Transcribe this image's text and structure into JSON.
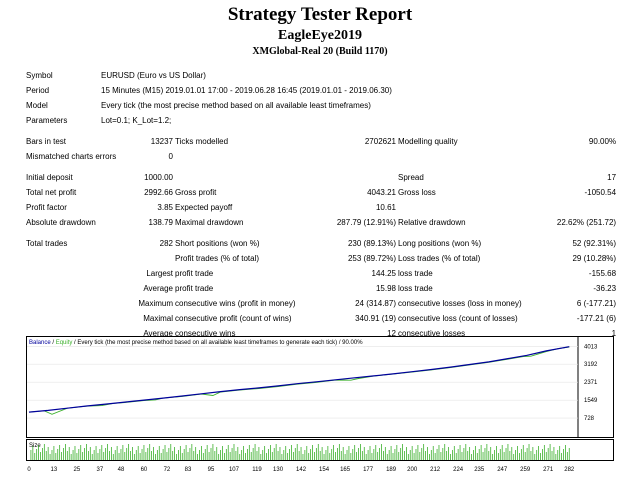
{
  "report": {
    "title": "Strategy Tester Report",
    "expert": "EagleEye2019",
    "server": "XMGlobal-Real 20 (Build 1170)"
  },
  "info": {
    "symbol_label": "Symbol",
    "symbol_value": "EURUSD (Euro vs US Dollar)",
    "period_label": "Period",
    "period_value": "15 Minutes (M15) 2019.01.01 17:00 - 2019.06.28 16:45 (2019.01.01 - 2019.06.30)",
    "model_label": "Model",
    "model_value": "Every tick (the most precise method based on all available least timeframes)",
    "parameters_label": "Parameters",
    "parameters_value": "Lot=0.1; K_Lot=1.2;"
  },
  "stats": {
    "bars_label": "Bars in test",
    "bars_value": "13237",
    "ticks_label": "Ticks modelled",
    "ticks_value": "2702621",
    "quality_label": "Modelling quality",
    "quality_value": "90.00%",
    "mismatch_label": "Mismatched charts errors",
    "mismatch_value": "0",
    "deposit_label": "Initial deposit",
    "deposit_value": "1000.00",
    "spread_label": "Spread",
    "spread_value": "17",
    "netprofit_label": "Total net profit",
    "netprofit_value": "2992.66",
    "grossprofit_label": "Gross profit",
    "grossprofit_value": "4043.21",
    "grossloss_label": "Gross loss",
    "grossloss_value": "-1050.54",
    "pf_label": "Profit factor",
    "pf_value": "3.85",
    "payoff_label": "Expected payoff",
    "payoff_value": "10.61",
    "absdd_label": "Absolute drawdown",
    "absdd_value": "138.79",
    "maxdd_label": "Maximal drawdown",
    "maxdd_value": "287.79 (12.91%)",
    "reldd_label": "Relative drawdown",
    "reldd_value": "22.62% (251.72)",
    "trades_label": "Total trades",
    "trades_value": "282",
    "short_label": "Short positions (won %)",
    "short_value": "230 (89.13%)",
    "long_label": "Long positions (won %)",
    "long_value": "52 (92.31%)",
    "profit_trades_label": "Profit trades (% of total)",
    "profit_trades_value": "253 (89.72%)",
    "loss_trades_label": "Loss trades (% of total)",
    "loss_trades_value": "29 (10.28%)",
    "largest_label": "Largest",
    "largest_profit_label": "profit trade",
    "largest_profit_value": "144.25",
    "largest_loss_label": "loss trade",
    "largest_loss_value": "-155.68",
    "average_label": "Average",
    "average_profit_label": "profit trade",
    "average_profit_value": "15.98",
    "average_loss_label": "loss trade",
    "average_loss_value": "-36.23",
    "maximum_label": "Maximum",
    "max_cons_wins_label": "consecutive wins (profit in money)",
    "max_cons_wins_value": "24 (314.87)",
    "max_cons_losses_label": "consecutive losses (loss in money)",
    "max_cons_losses_value": "6 (-177.21)",
    "maximal_label": "Maximal",
    "max_cons_profit_label": "consecutive profit (count of wins)",
    "max_cons_profit_value": "340.91 (19)",
    "max_cons_loss_label": "consecutive loss (count of losses)",
    "max_cons_loss_value": "-177.21 (6)",
    "average2_label": "Average",
    "avg_cons_wins_label": "consecutive wins",
    "avg_cons_wins_value": "12",
    "avg_cons_losses_label": "consecutive losses",
    "avg_cons_losses_value": "1"
  },
  "chart_data": {
    "type": "line",
    "legend": {
      "balance": "Balance",
      "sep1": " / ",
      "equity": "Equity",
      "rest": " / Every tick (the most precise method based on all available least timeframes to generate each tick) / 90.00%"
    },
    "balance_color": "#00009c",
    "equity_color": "#3cb02c",
    "size_color": "#3cb02c",
    "ylim": [
      0,
      4300
    ],
    "yticks": [
      "4013",
      "3192",
      "2371",
      "1549",
      "728"
    ],
    "ytick_values": [
      4013,
      3192,
      2371,
      1549,
      728
    ],
    "size_label": "Size",
    "xticks": [
      "0",
      "13",
      "25",
      "37",
      "48",
      "60",
      "72",
      "83",
      "95",
      "107",
      "119",
      "130",
      "142",
      "154",
      "165",
      "177",
      "189",
      "200",
      "212",
      "224",
      "235",
      "247",
      "259",
      "271",
      "282"
    ],
    "xlim": [
      0,
      285
    ],
    "series": [
      {
        "name": "Balance",
        "x": [
          0,
          10,
          20,
          30,
          40,
          50,
          60,
          70,
          80,
          90,
          100,
          110,
          120,
          130,
          140,
          150,
          160,
          170,
          180,
          190,
          200,
          210,
          220,
          230,
          240,
          250,
          260,
          270,
          282
        ],
        "values": [
          1000,
          1080,
          1180,
          1280,
          1370,
          1460,
          1550,
          1640,
          1740,
          1840,
          1940,
          2030,
          2110,
          2200,
          2300,
          2390,
          2480,
          2570,
          2660,
          2750,
          2850,
          2950,
          3060,
          3180,
          3300,
          3450,
          3600,
          3800,
          3992
        ]
      },
      {
        "name": "Equity",
        "x": [
          0,
          8,
          12,
          20,
          30,
          38,
          44,
          50,
          60,
          66,
          70,
          80,
          90,
          96,
          100,
          110,
          120,
          130,
          140,
          150,
          160,
          168,
          172,
          180,
          190,
          200,
          210,
          220,
          230,
          240,
          250,
          258,
          262,
          270,
          276,
          282
        ],
        "values": [
          1000,
          1060,
          900,
          1180,
          1270,
          1300,
          1400,
          1440,
          1530,
          1560,
          1640,
          1720,
          1830,
          1760,
          1920,
          2010,
          2080,
          2170,
          2280,
          2360,
          2470,
          2460,
          2540,
          2650,
          2740,
          2830,
          2930,
          3040,
          3160,
          3280,
          3420,
          3540,
          3560,
          3770,
          3900,
          3980
        ]
      }
    ]
  }
}
